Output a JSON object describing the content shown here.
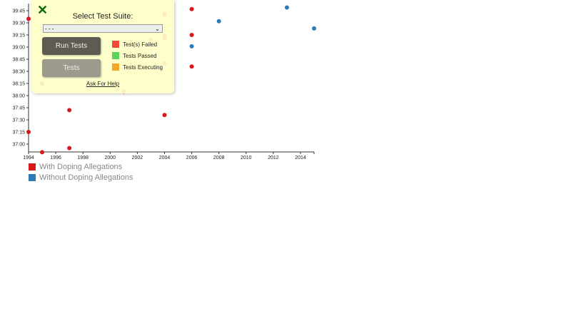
{
  "chart_data": {
    "type": "scatter",
    "xlabel": "",
    "ylabel": "",
    "xlim": [
      1994,
      2015
    ],
    "ylim": [
      "36:50",
      "39:50"
    ],
    "x_ticks": [
      "1994",
      "1996",
      "1998",
      "2000",
      "2002",
      "2004",
      "2006",
      "2008",
      "2010",
      "2012",
      "2014"
    ],
    "y_ticks": [
      "37:00",
      "37:15",
      "37:30",
      "37:45",
      "38:00",
      "38:15",
      "38:30",
      "38:45",
      "39:00",
      "39:15",
      "39:30",
      "39:45"
    ],
    "series": [
      {
        "name": "With Doping Allegations",
        "color": "#d7191c",
        "points": [
          [
            1994,
            "37:15"
          ],
          [
            1995,
            "36:50"
          ],
          [
            1997,
            "36:55"
          ],
          [
            1997,
            "37:42"
          ],
          [
            2004,
            "37:36"
          ],
          [
            2001,
            "38:05"
          ],
          [
            1995,
            "38:15"
          ],
          [
            2004,
            "38:40"
          ],
          [
            2006,
            "38:36"
          ],
          [
            2003,
            "39:09"
          ],
          [
            2004,
            "39:14"
          ],
          [
            2004,
            "39:11"
          ],
          [
            2006,
            "39:15"
          ],
          [
            2004,
            "39:41"
          ],
          [
            2004,
            "39:40"
          ],
          [
            2006,
            "39:47"
          ],
          [
            1995,
            "39:45"
          ],
          [
            1994,
            "39:35"
          ]
        ]
      },
      {
        "name": "Without Doping Allegations",
        "color": "#2c7bb6",
        "points": [
          [
            2006,
            "39:01"
          ],
          [
            2008,
            "39:32"
          ],
          [
            2013,
            "39:49"
          ],
          [
            2015,
            "39:23"
          ]
        ]
      }
    ],
    "legend": "bottom-left"
  },
  "panel": {
    "title": "Select Test Suite:",
    "select_value": "- - -",
    "run_label": "Run Tests",
    "tests_label": "Tests",
    "help_label": "Ask For Help",
    "statuses": [
      {
        "label": "Test(s) Failed",
        "color": "#f2493b"
      },
      {
        "label": "Tests Passed",
        "color": "#59d65a"
      },
      {
        "label": "Tests Executing",
        "color": "#f5a623"
      }
    ]
  }
}
